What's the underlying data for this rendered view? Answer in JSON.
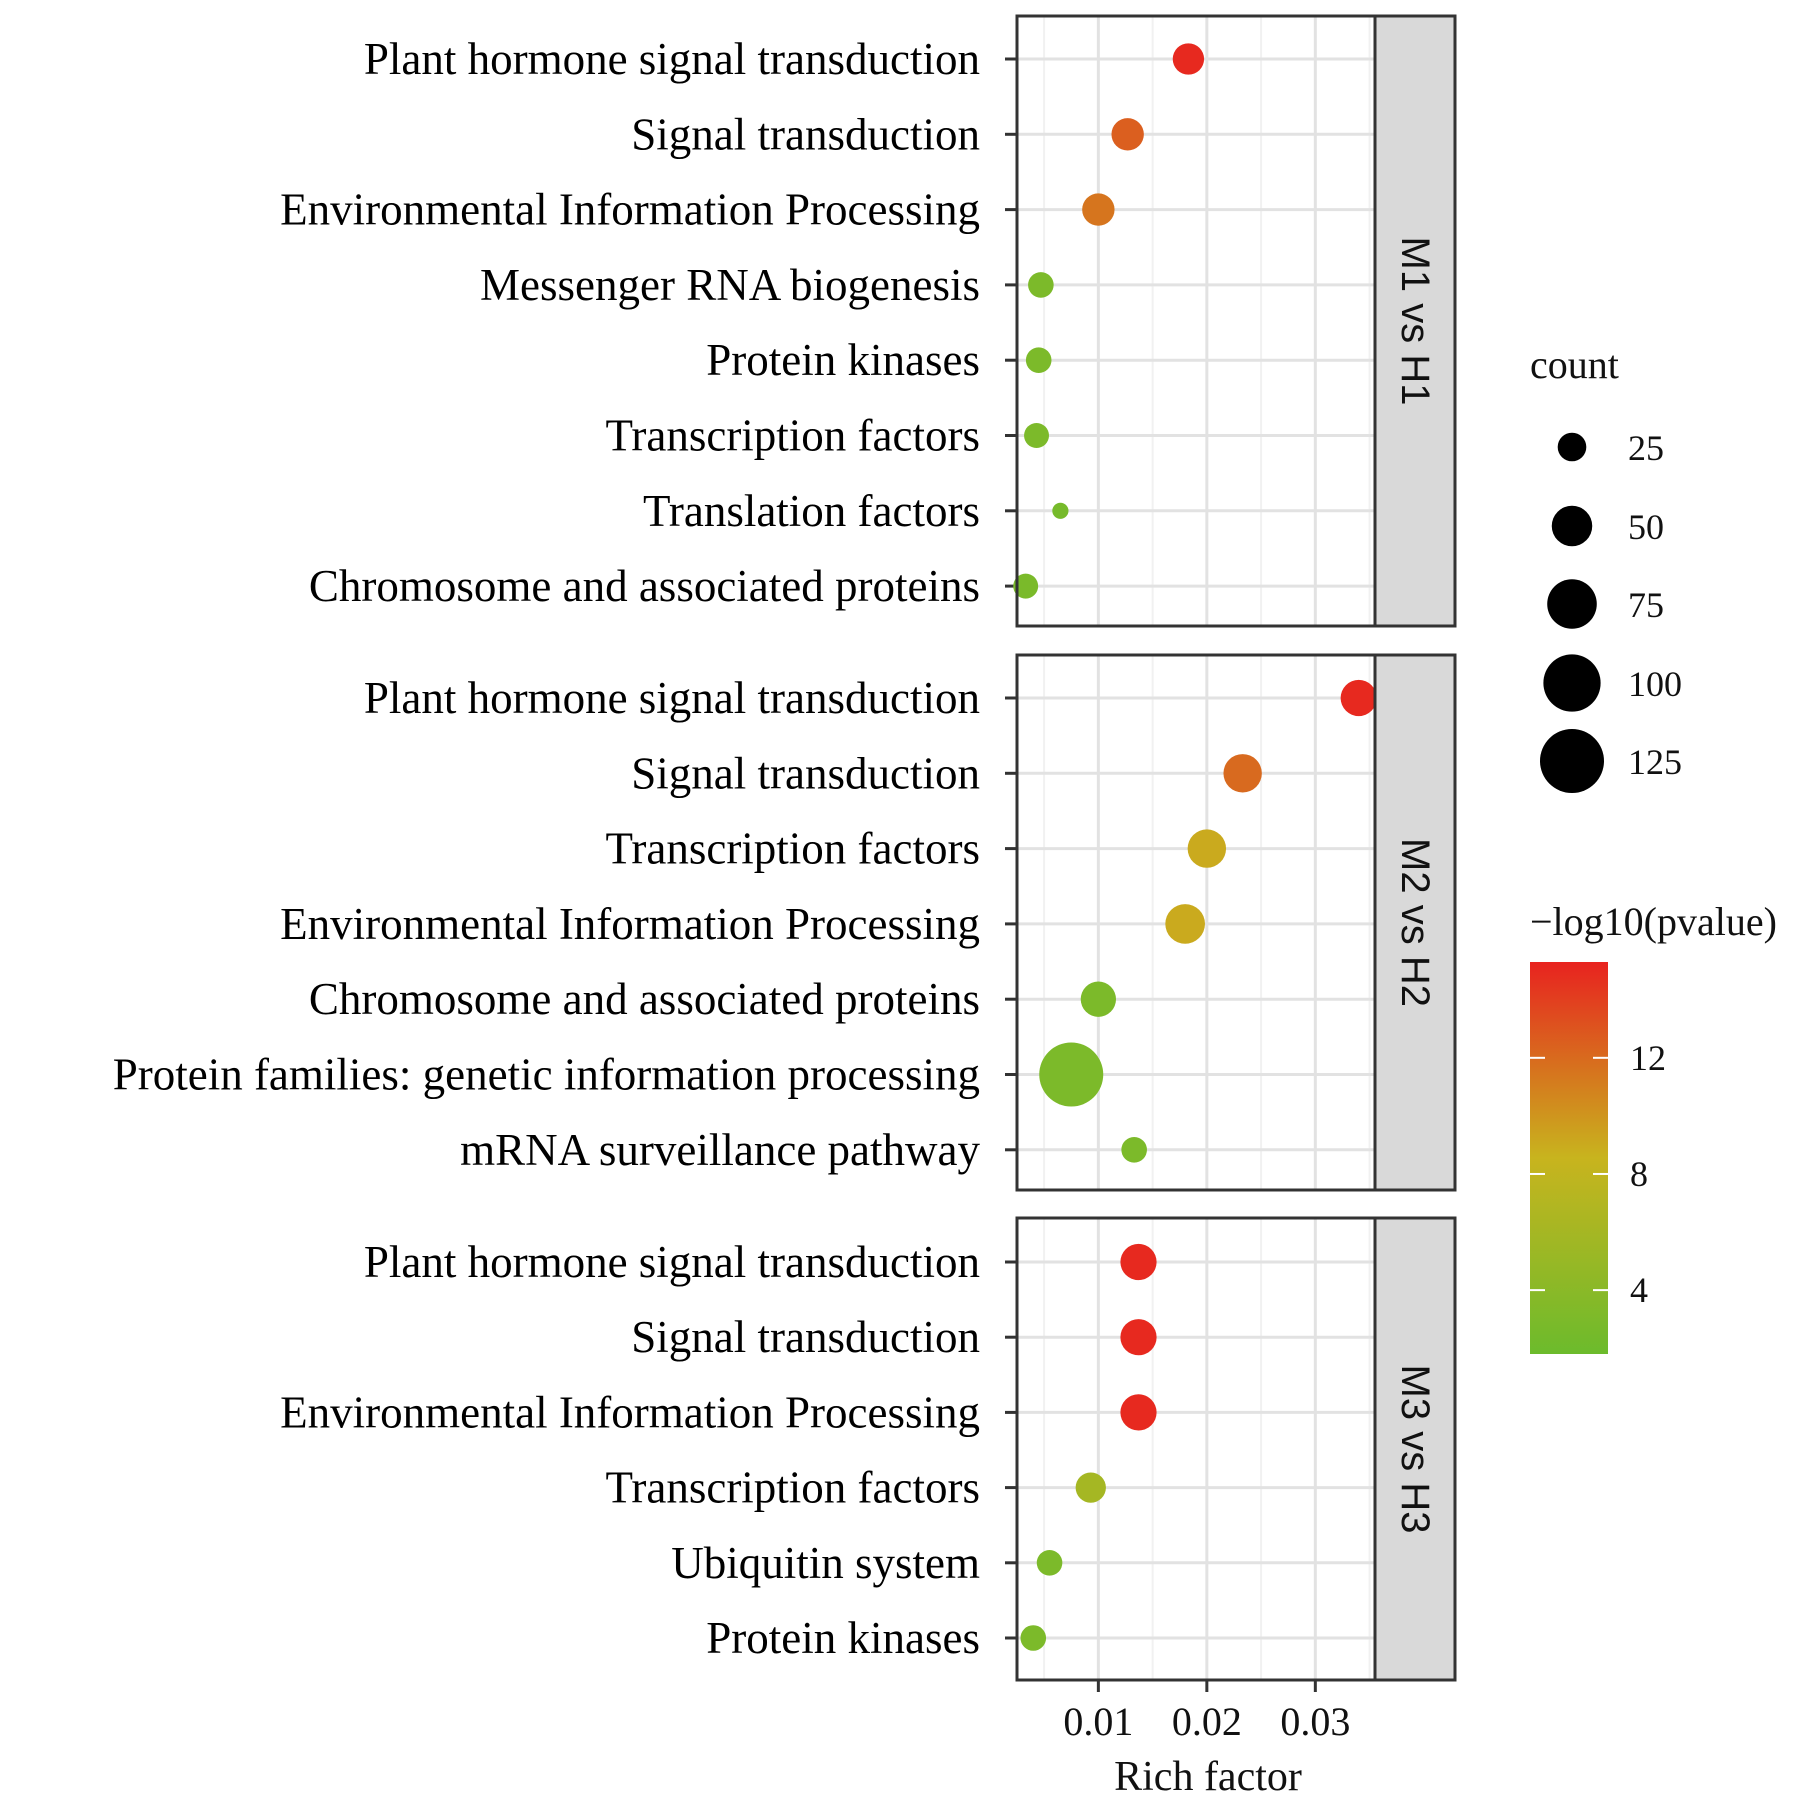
{
  "chart_data": {
    "type": "scatter",
    "subtype": "faceted bubble chart",
    "xlabel": "Rich factor",
    "x_ticks": [
      "0.01",
      "0.02",
      "0.03"
    ],
    "x_tick_values": [
      0.01,
      0.02,
      0.03
    ],
    "xlim": [
      0.0025,
      0.0355
    ],
    "size_legend": {
      "title": "count",
      "values": [
        25,
        50,
        75,
        100,
        125
      ],
      "labels": [
        "25",
        "50",
        "75",
        "100",
        "125"
      ]
    },
    "color_legend": {
      "title": "−log10(pvalue)",
      "ticks": [
        4,
        8,
        12
      ],
      "tick_labels": [
        "4",
        "8",
        "12"
      ],
      "range": [
        1.8,
        15.3
      ],
      "low_color": "#6cbb2c",
      "mid_color": "#c8b41e",
      "high_color": "#e8231f"
    },
    "panels": [
      {
        "label": "M1 vs H1",
        "categories": [
          "Plant hormone signal transduction",
          "Signal transduction",
          "Environmental Information Processing",
          "Messenger RNA biogenesis",
          "Protein kinases",
          "Transcription factors",
          "Translation factors",
          "Chromosome and associated proteins"
        ],
        "points": [
          {
            "x": 0.0183,
            "count": 30,
            "neglog10p": 15.0
          },
          {
            "x": 0.0127,
            "count": 32,
            "neglog10p": 12.5
          },
          {
            "x": 0.01,
            "count": 32,
            "neglog10p": 11.5
          },
          {
            "x": 0.0047,
            "count": 20,
            "neglog10p": 3.0
          },
          {
            "x": 0.0045,
            "count": 20,
            "neglog10p": 3.0
          },
          {
            "x": 0.0043,
            "count": 19,
            "neglog10p": 3.0
          },
          {
            "x": 0.0065,
            "count": 8,
            "neglog10p": 2.5
          },
          {
            "x": 0.0033,
            "count": 19,
            "neglog10p": 2.8
          }
        ]
      },
      {
        "label": "M2 vs H2",
        "categories": [
          "Plant hormone signal transduction",
          "Signal transduction",
          "Transcription factors",
          "Environmental Information Processing",
          "Chromosome and associated proteins",
          "Protein families: genetic information processing",
          "mRNA surveillance pathway"
        ],
        "points": [
          {
            "x": 0.034,
            "count": 40,
            "neglog10p": 15.0
          },
          {
            "x": 0.0233,
            "count": 45,
            "neglog10p": 12.0
          },
          {
            "x": 0.02,
            "count": 45,
            "neglog10p": 9.0
          },
          {
            "x": 0.018,
            "count": 48,
            "neglog10p": 9.0
          },
          {
            "x": 0.01,
            "count": 38,
            "neglog10p": 3.0
          },
          {
            "x": 0.0075,
            "count": 125,
            "neglog10p": 3.0
          },
          {
            "x": 0.0133,
            "count": 20,
            "neglog10p": 3.0
          }
        ]
      },
      {
        "label": "M3 vs H3",
        "categories": [
          "Plant hormone signal transduction",
          "Signal transduction",
          "Environmental Information Processing",
          "Transcription factors",
          "Ubiquitin system",
          "Protein kinases"
        ],
        "points": [
          {
            "x": 0.0137,
            "count": 40,
            "neglog10p": 15.0
          },
          {
            "x": 0.0137,
            "count": 40,
            "neglog10p": 15.0
          },
          {
            "x": 0.0137,
            "count": 40,
            "neglog10p": 15.0
          },
          {
            "x": 0.0093,
            "count": 28,
            "neglog10p": 6.0
          },
          {
            "x": 0.0055,
            "count": 20,
            "neglog10p": 3.0
          },
          {
            "x": 0.004,
            "count": 20,
            "neglog10p": 3.0
          }
        ]
      }
    ]
  }
}
